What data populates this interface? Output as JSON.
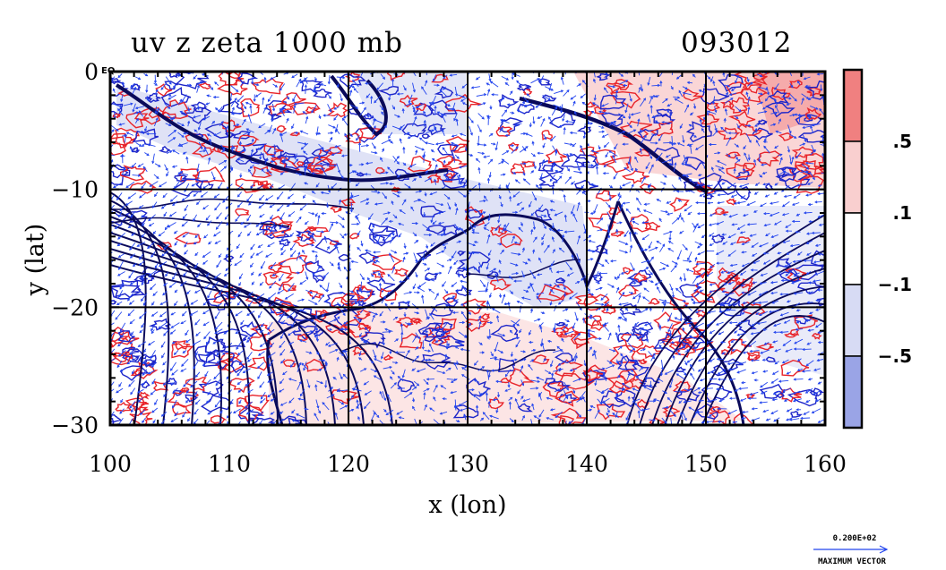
{
  "chart_data": {
    "type": "heatmap",
    "title": "uv z zeta 1000 mb",
    "timestamp": "093012",
    "xlabel": "x (lon)",
    "ylabel": "y (lat)",
    "xlim": [
      100,
      160
    ],
    "ylim": [
      -30,
      0
    ],
    "x_ticks": [
      100,
      110,
      120,
      130,
      140,
      150,
      160
    ],
    "y_ticks": [
      0,
      -10,
      -20,
      -30
    ],
    "y_tick_labels": [
      "0",
      "−10",
      "−20",
      "−30"
    ],
    "equator_label": "EQ",
    "grid": true,
    "layers": [
      "wind vectors (uv)",
      "height contours (z)",
      "vorticity zeta shaded"
    ],
    "colorbar": {
      "placement": "right",
      "levels_labels": [
        ".5",
        ".1",
        "−.1",
        "−.5"
      ],
      "colors": [
        "#f08080",
        "#f9cfcf",
        "#ffffff",
        "#d7dbf4",
        "#9aa4e6"
      ]
    },
    "reference_vector": {
      "value_label": "0.200E+02",
      "caption": "MAXIMUM VECTOR"
    },
    "colors": {
      "positive": "#e8242a",
      "negative": "#1d25c9",
      "contour": "#0a0a5a",
      "vector": "#2244ee"
    }
  }
}
